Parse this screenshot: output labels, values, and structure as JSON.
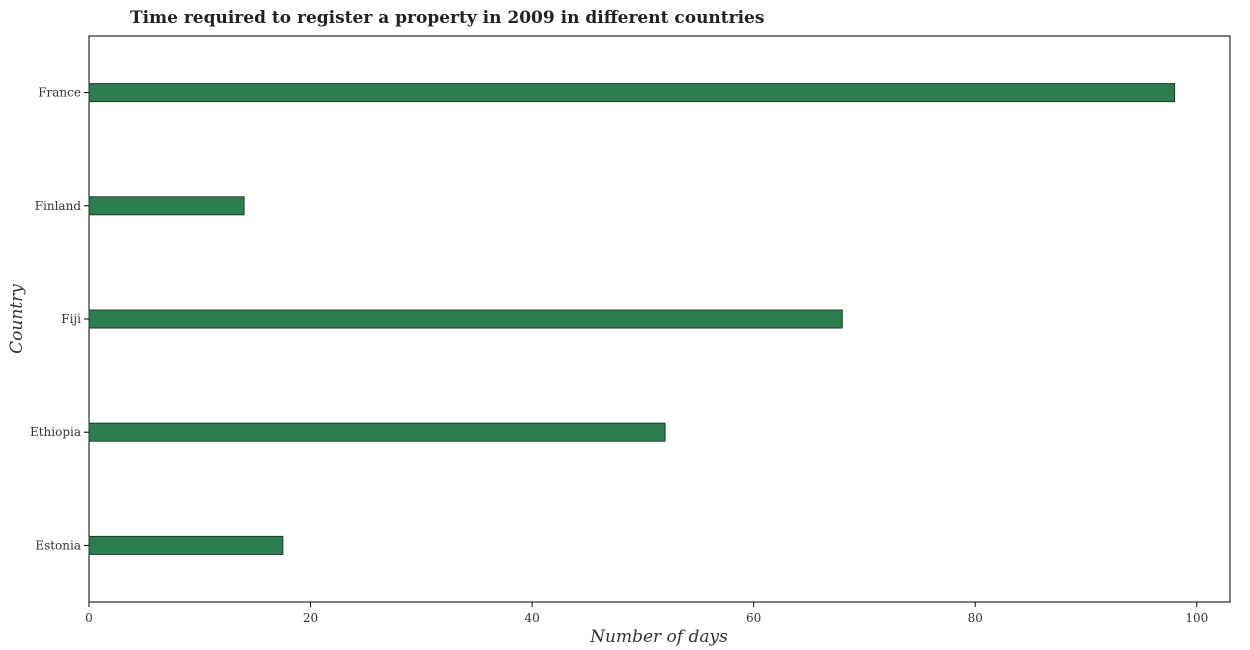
{
  "chart_data": {
    "type": "bar",
    "orientation": "horizontal",
    "title": "Time required to register a property in 2009 in different countries",
    "xlabel": "Number of days",
    "ylabel": "Country",
    "categories": [
      "Estonia",
      "Ethiopia",
      "Fiji",
      "Finland",
      "France"
    ],
    "values": [
      17.5,
      52,
      68,
      14,
      98
    ],
    "xlim": [
      0,
      103
    ],
    "xticks": [
      0,
      20,
      40,
      60,
      80,
      100
    ],
    "grid": false,
    "bar_color": "#2e7d4f",
    "bar_edge_color": "#1a3d26"
  }
}
